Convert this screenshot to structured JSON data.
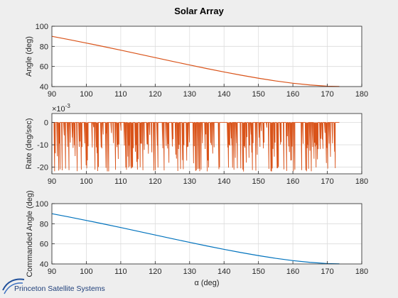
{
  "figure": {
    "title": "Solar Array",
    "logo_text": "Princeton Satellite Systems",
    "colors": {
      "background": "#eeeeee",
      "plot_bg": "#ffffff",
      "grid": "#dcdcdc",
      "axis": "#262626"
    }
  },
  "chart_data": [
    {
      "type": "line",
      "title": "Solar Array",
      "xlabel": "",
      "ylabel": "Angle (deg)",
      "xlim": [
        90,
        180
      ],
      "ylim": [
        40,
        100
      ],
      "xticks": [
        90,
        100,
        110,
        120,
        130,
        140,
        150,
        160,
        170,
        180
      ],
      "yticks": [
        40,
        60,
        80,
        100
      ],
      "grid": true,
      "color": "#d95319",
      "series": [
        {
          "x": [
            90,
            95,
            100,
            105,
            110,
            115,
            120,
            125,
            130,
            135,
            140,
            145,
            150,
            155,
            160,
            165,
            170,
            173.5
          ],
          "values": [
            90,
            86.7,
            83.3,
            79.8,
            76.2,
            72.5,
            68.8,
            65.1,
            61.5,
            57.9,
            54.5,
            51.3,
            48.3,
            45.6,
            43.3,
            41.6,
            40.4,
            40.1
          ]
        }
      ]
    },
    {
      "type": "line",
      "xlabel": "",
      "ylabel": "Rate (deg/sec)",
      "y_exponent_label": "×10",
      "y_exponent_power": "-3",
      "xlim": [
        90,
        180
      ],
      "ylim": [
        -0.023,
        0.004
      ],
      "xticks": [
        90,
        100,
        110,
        120,
        130,
        140,
        150,
        160,
        170,
        180
      ],
      "yticks": [
        -0.02,
        -0.01,
        0
      ],
      "ytick_labels": [
        "-20",
        "-10",
        "0"
      ],
      "grid": true,
      "color": "#d95319",
      "series": [
        {
          "note_shape": "high-frequency switching between about 0 and -22e-3 deg/sec",
          "x_range": [
            90,
            173.5
          ],
          "values_range": [
            -0.022,
            0.0005
          ]
        }
      ]
    },
    {
      "type": "line",
      "xlabel": "α (deg)",
      "ylabel": "Commanded Angle (deg)",
      "xlim": [
        90,
        180
      ],
      "ylim": [
        40,
        100
      ],
      "xticks": [
        90,
        100,
        110,
        120,
        130,
        140,
        150,
        160,
        170,
        180
      ],
      "yticks": [
        40,
        60,
        80,
        100
      ],
      "grid": true,
      "color": "#0072bd",
      "series": [
        {
          "x": [
            90,
            95,
            100,
            105,
            110,
            115,
            120,
            125,
            130,
            135,
            140,
            145,
            150,
            155,
            160,
            165,
            170,
            173.5
          ],
          "values": [
            90,
            86.7,
            83.3,
            79.8,
            76.2,
            72.5,
            68.8,
            65.1,
            61.5,
            57.9,
            54.5,
            51.3,
            48.3,
            45.6,
            43.3,
            41.6,
            40.4,
            40.1
          ]
        }
      ]
    }
  ]
}
